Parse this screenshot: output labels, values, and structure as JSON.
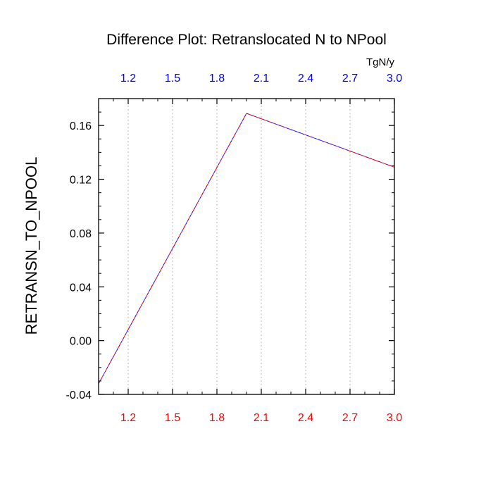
{
  "chart_data": {
    "type": "line",
    "title": "Difference Plot: Retranslocated N to NPool",
    "ylabel": "RETRANSN_TO_NPOOL",
    "top_axis_units": "TgN/y",
    "xlim": [
      1.0,
      3.0
    ],
    "ylim": [
      -0.04,
      0.18
    ],
    "x_ticks": [
      1.2,
      1.5,
      1.8,
      2.1,
      2.4,
      2.7,
      3.0
    ],
    "x_tick_labels": [
      "1.2",
      "1.5",
      "1.8",
      "2.1",
      "2.4",
      "2.7",
      "3.0"
    ],
    "y_ticks": [
      -0.04,
      0.0,
      0.04,
      0.08,
      0.12,
      0.16
    ],
    "y_tick_labels": [
      "-0.04",
      "0.00",
      "0.04",
      "0.08",
      "0.12",
      "0.16"
    ],
    "grid": "vertical dotted at x ticks",
    "x": [
      1.0,
      2.0,
      3.0
    ],
    "series": [
      {
        "values": [
          -0.032,
          0.169,
          0.129
        ],
        "color": "#0000ff",
        "dash": "dashed"
      },
      {
        "values": [
          -0.032,
          0.169,
          0.129
        ],
        "color": "#ff0000",
        "dash": "dashed-offset"
      }
    ],
    "colors": {
      "bottom_tick_labels": "#ff0000",
      "top_tick_labels": "#0000ff",
      "text": "#000000"
    }
  }
}
